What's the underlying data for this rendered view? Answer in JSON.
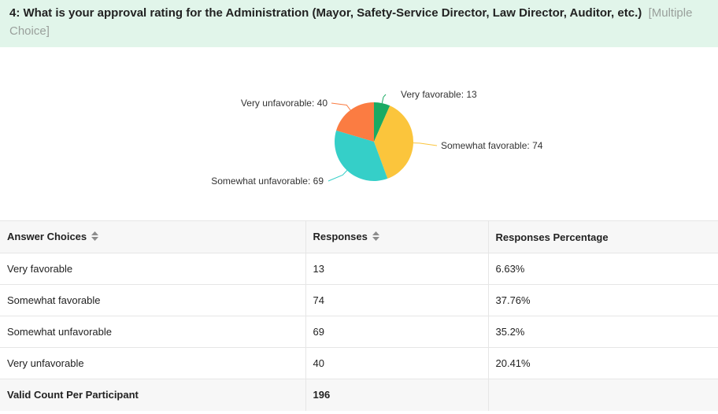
{
  "question": {
    "title": "4: What is your approval rating for the Administration (Mayor, Safety-Service Director, Law Director, Auditor, etc.)",
    "type_label": "[Multiple Choice]"
  },
  "colors": {
    "very_favorable": "#1aaa63",
    "somewhat_favorable": "#fbc53c",
    "somewhat_unfavorable": "#35cfc8",
    "very_unfavorable": "#fb7c42"
  },
  "chart_data": {
    "type": "pie",
    "slices": [
      {
        "label": "Very favorable",
        "value": 13,
        "color": "#1aaa63",
        "display": "Very favorable: 13"
      },
      {
        "label": "Somewhat favorable",
        "value": 74,
        "color": "#fbc53c",
        "display": "Somewhat favorable: 74"
      },
      {
        "label": "Somewhat unfavorable",
        "value": 69,
        "color": "#35cfc8",
        "display": "Somewhat unfavorable: 69"
      },
      {
        "label": "Very unfavorable",
        "value": 40,
        "color": "#fb7c42",
        "display": "Very unfavorable: 40"
      }
    ]
  },
  "table": {
    "headers": [
      "Answer Choices",
      "Responses",
      "Responses Percentage"
    ],
    "rows": [
      {
        "choice": "Very favorable",
        "responses": "13",
        "percentage": "6.63%"
      },
      {
        "choice": "Somewhat favorable",
        "responses": "74",
        "percentage": "37.76%"
      },
      {
        "choice": "Somewhat unfavorable",
        "responses": "69",
        "percentage": "35.2%"
      },
      {
        "choice": "Very unfavorable",
        "responses": "40",
        "percentage": "20.41%"
      }
    ],
    "footer": {
      "label": "Valid Count Per Participant",
      "value": "196",
      "percentage": ""
    }
  }
}
